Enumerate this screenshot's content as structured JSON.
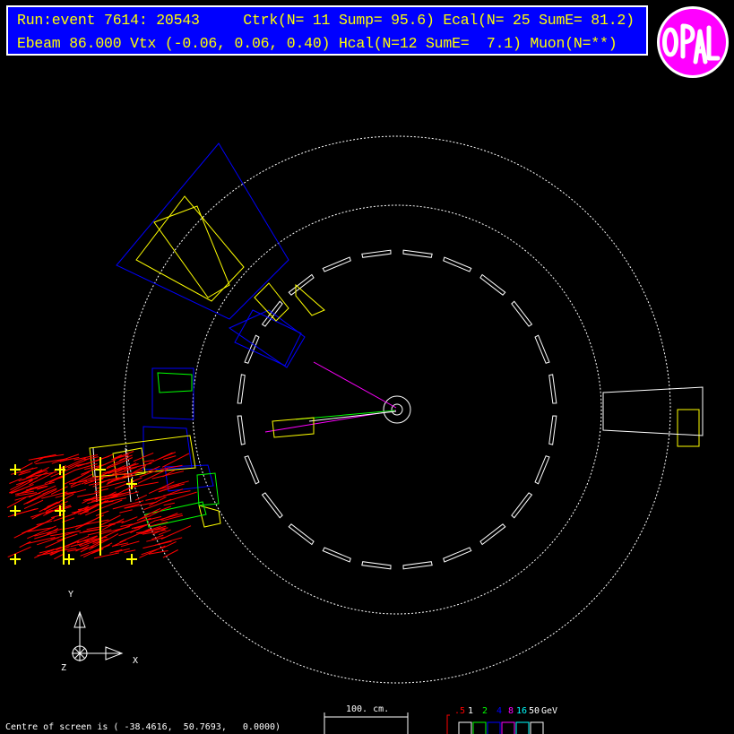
{
  "header": {
    "line1": "Run:event 7614: 20543     Ctrk(N= 11 Sump= 95.6) Ecal(N= 25 SumE= 81.2)",
    "line2": "Ebeam 86.000 Vtx (-0.06, 0.06, 0.40) Hcal(N=12 SumE=  7.1) Muon(N=**)"
  },
  "logo": {
    "text": "OPAL",
    "colors": {
      "fill": "#ff00ff",
      "ring": "#ffffff",
      "letters": "#ffffff"
    }
  },
  "axes": {
    "y": "Y",
    "x": "X",
    "z": "Z"
  },
  "scale": {
    "label": "100. cm."
  },
  "legend": {
    "labels": [
      {
        "text": ".5",
        "color": "#ff0000"
      },
      {
        "text": "1",
        "color": "#ffffff"
      },
      {
        "text": "2",
        "color": "#00ff00"
      },
      {
        "text": "4",
        "color": "#0000ff"
      },
      {
        "text": "8",
        "color": "#ff00ff"
      },
      {
        "text": "16",
        "color": "#00ffff"
      },
      {
        "text": "50",
        "color": "#ffffff"
      }
    ],
    "unit": "GeV"
  },
  "footer": {
    "centre": "Centre of screen is ( -38.4616,  50.7693,   0.0000)"
  },
  "colors": {
    "background": "#000000",
    "header_bg": "#0000ff",
    "header_text": "#ffff00",
    "detector": "#ffffff",
    "ecal_blocks": "#ffff00",
    "hcal_towers": "#0000ff",
    "muon_hits": "#ff0000",
    "track": "#ff00ff"
  }
}
